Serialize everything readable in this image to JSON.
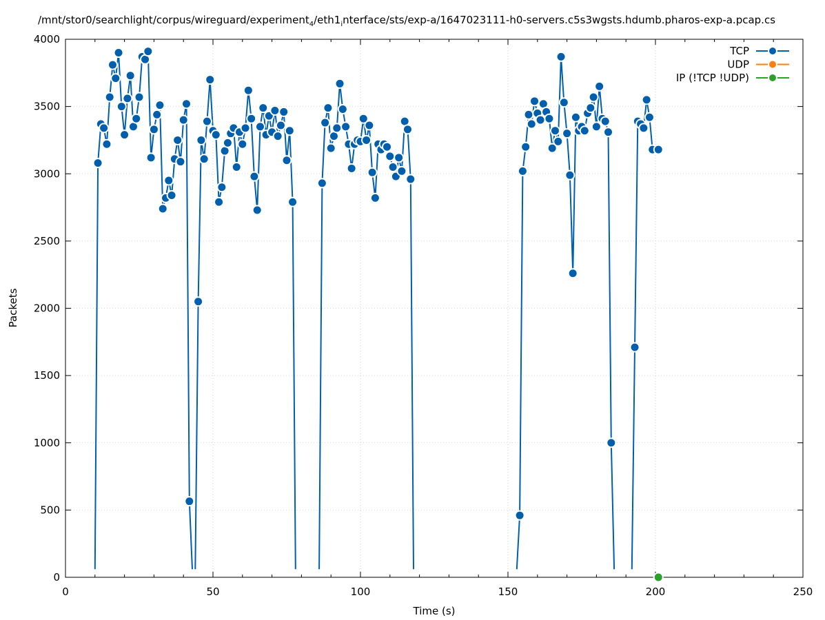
{
  "chart_data": {
    "type": "line",
    "title_parts": [
      "/mnt/stor0/searchlight/corpus/wireguard/experiment",
      "4",
      "/eth1",
      "i",
      "nterface/sts/exp-a/1647023111-h0-servers.c5s3wgsts.hdumb.pharos-exp-a.pcap.cs"
    ],
    "xlabel": "Time (s)",
    "ylabel": "Packets",
    "xlim": [
      0,
      250
    ],
    "ylim": [
      0,
      4000
    ],
    "xticks": [
      0,
      50,
      100,
      150,
      200,
      250
    ],
    "yticks": [
      0,
      500,
      1000,
      1500,
      2000,
      2500,
      3000,
      3500,
      4000
    ],
    "grid": true,
    "legend_position": "top-right",
    "series": [
      {
        "name": "TCP",
        "color": "#005fad",
        "segments": [
          [
            [
              10,
              60
            ],
            [
              11,
              3080
            ],
            [
              12,
              3370
            ],
            [
              13,
              3340
            ],
            [
              14,
              3220
            ],
            [
              15,
              3570
            ],
            [
              16,
              3810
            ],
            [
              17,
              3710
            ],
            [
              18,
              3900
            ],
            [
              19,
              3500
            ],
            [
              20,
              3290
            ],
            [
              21,
              3560
            ],
            [
              22,
              3730
            ],
            [
              23,
              3350
            ],
            [
              24,
              3410
            ],
            [
              25,
              3570
            ],
            [
              26,
              3870
            ],
            [
              27,
              3850
            ],
            [
              28,
              3910
            ],
            [
              29,
              3120
            ],
            [
              30,
              3330
            ],
            [
              31,
              3440
            ],
            [
              32,
              3510
            ],
            [
              33,
              2740
            ],
            [
              34,
              2820
            ],
            [
              35,
              2950
            ],
            [
              36,
              2840
            ],
            [
              37,
              3110
            ],
            [
              38,
              3250
            ],
            [
              39,
              3090
            ],
            [
              40,
              3400
            ],
            [
              41,
              3520
            ],
            [
              42,
              565
            ],
            [
              43,
              60
            ]
          ],
          [
            [
              44,
              60
            ],
            [
              45,
              2050
            ],
            [
              46,
              3250
            ],
            [
              47,
              3110
            ],
            [
              48,
              3390
            ],
            [
              49,
              3700
            ],
            [
              50,
              3320
            ],
            [
              51,
              3290
            ],
            [
              52,
              2790
            ],
            [
              53,
              2900
            ],
            [
              54,
              3170
            ],
            [
              55,
              3230
            ],
            [
              56,
              3300
            ],
            [
              57,
              3340
            ],
            [
              58,
              3050
            ],
            [
              59,
              3310
            ],
            [
              60,
              3220
            ],
            [
              61,
              3340
            ],
            [
              62,
              3620
            ],
            [
              63,
              3410
            ],
            [
              64,
              2980
            ],
            [
              65,
              2730
            ],
            [
              66,
              3350
            ],
            [
              67,
              3490
            ],
            [
              68,
              3290
            ],
            [
              69,
              3430
            ],
            [
              70,
              3310
            ],
            [
              71,
              3470
            ],
            [
              72,
              3280
            ],
            [
              73,
              3360
            ],
            [
              74,
              3460
            ],
            [
              75,
              3100
            ],
            [
              76,
              3320
            ],
            [
              77,
              2790
            ],
            [
              78,
              60
            ]
          ],
          [
            [
              86,
              60
            ],
            [
              87,
              2930
            ],
            [
              88,
              3380
            ],
            [
              89,
              3490
            ],
            [
              90,
              3190
            ],
            [
              91,
              3280
            ],
            [
              92,
              3340
            ],
            [
              93,
              3670
            ],
            [
              94,
              3480
            ],
            [
              95,
              3350
            ],
            [
              96,
              3220
            ],
            [
              97,
              3040
            ],
            [
              98,
              3220
            ],
            [
              99,
              3250
            ],
            [
              100,
              3240
            ],
            [
              101,
              3410
            ],
            [
              102,
              3250
            ],
            [
              103,
              3360
            ],
            [
              104,
              3010
            ],
            [
              105,
              2820
            ],
            [
              106,
              3220
            ],
            [
              107,
              3180
            ],
            [
              108,
              3220
            ],
            [
              109,
              3200
            ],
            [
              110,
              3130
            ],
            [
              111,
              3050
            ],
            [
              112,
              2980
            ],
            [
              113,
              3120
            ],
            [
              114,
              3020
            ],
            [
              115,
              3390
            ],
            [
              116,
              3330
            ],
            [
              117,
              2960
            ],
            [
              118,
              60
            ]
          ],
          [
            [
              153,
              60
            ],
            [
              154,
              460
            ],
            [
              155,
              3020
            ],
            [
              156,
              3200
            ],
            [
              157,
              3440
            ],
            [
              158,
              3370
            ],
            [
              159,
              3540
            ],
            [
              160,
              3450
            ],
            [
              161,
              3400
            ],
            [
              162,
              3520
            ],
            [
              163,
              3460
            ],
            [
              164,
              3410
            ],
            [
              165,
              3190
            ],
            [
              166,
              3320
            ],
            [
              167,
              3240
            ],
            [
              168,
              3870
            ],
            [
              169,
              3530
            ],
            [
              170,
              3300
            ],
            [
              171,
              2990
            ],
            [
              172,
              2260
            ],
            [
              173,
              3420
            ],
            [
              174,
              3320
            ],
            [
              175,
              3350
            ],
            [
              176,
              3320
            ],
            [
              177,
              3450
            ],
            [
              178,
              3490
            ],
            [
              179,
              3570
            ],
            [
              180,
              3350
            ],
            [
              181,
              3650
            ],
            [
              182,
              3410
            ],
            [
              183,
              3390
            ],
            [
              184,
              3310
            ],
            [
              185,
              1000
            ],
            [
              186,
              60
            ]
          ],
          [
            [
              192,
              60
            ],
            [
              193,
              1710
            ],
            [
              194,
              3390
            ],
            [
              195,
              3370
            ],
            [
              196,
              3340
            ],
            [
              197,
              3550
            ],
            [
              198,
              3420
            ],
            [
              199,
              3180
            ],
            [
              201,
              3180
            ]
          ]
        ]
      },
      {
        "name": "UDP",
        "color": "#ff7f0e",
        "segments": []
      },
      {
        "name": "IP (!TCP  !UDP)",
        "color": "#2ca02c",
        "segments": [
          [
            [
              201,
              0
            ]
          ]
        ]
      }
    ]
  }
}
